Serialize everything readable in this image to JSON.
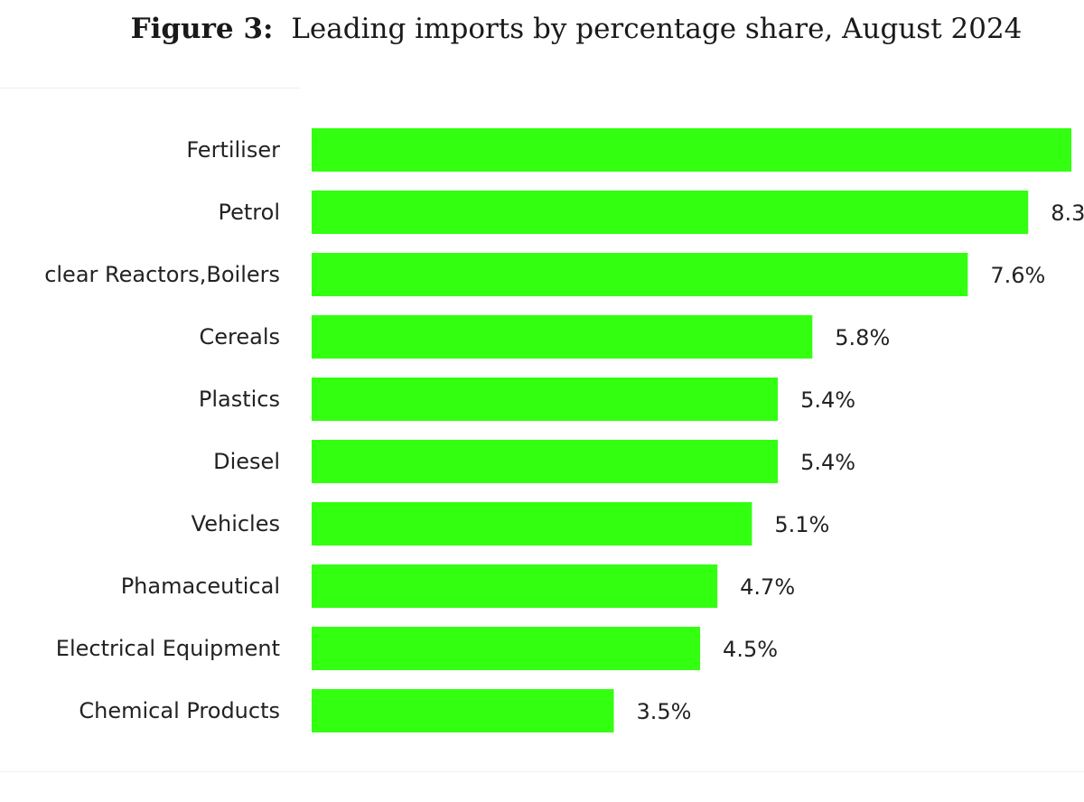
{
  "caption": {
    "figure_label": "Figure 3:",
    "title_text": "Leading imports by percentage share, August 2024"
  },
  "chart_data": {
    "type": "bar",
    "orientation": "horizontal",
    "title": "Leading imports by percentage share, August 2024",
    "bar_color": "#33ff11",
    "categories": [
      "Fertiliser",
      "Petrol",
      "clear Reactors,Boilers",
      "Cereals",
      "Plastics",
      "Diesel",
      "Vehicles",
      "Phamaceutical",
      "Electrical Equipment",
      "Chemical Products"
    ],
    "values": [
      8.8,
      8.3,
      7.6,
      5.8,
      5.4,
      5.4,
      5.1,
      4.7,
      4.5,
      3.5
    ],
    "value_labels": [
      "",
      "8.3",
      "7.6%",
      "5.8%",
      "5.4%",
      "5.4%",
      "5.1%",
      "4.7%",
      "4.5%",
      "3.5%"
    ],
    "xlabel": "",
    "ylabel": "",
    "xlim": [
      0,
      8.8
    ],
    "grid": false
  }
}
